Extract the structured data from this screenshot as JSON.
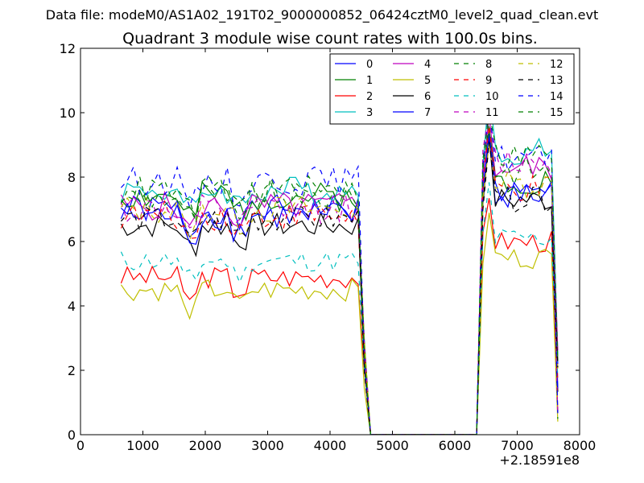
{
  "chart_data": {
    "type": "line",
    "suptitle": "Data file: modeM0/AS1A02_191T02_9000000852_06424cztM0_level2_quad_clean.evt",
    "title": "Quadrant 3 module wise count rates with 100.0s bins.",
    "xlabel": "",
    "ylabel": "",
    "xlim": [
      0,
      8000
    ],
    "ylim": [
      0,
      12
    ],
    "x_ticks": [
      0,
      1000,
      2000,
      3000,
      4000,
      5000,
      6000,
      7000,
      8000
    ],
    "y_ticks": [
      0,
      2,
      4,
      6,
      8,
      10,
      12
    ],
    "x_offset_label": "+2.18591e8",
    "grid": false,
    "legend_position": "top-right",
    "legend_columns": 4,
    "segments": [
      {
        "x_start": 650,
        "x_end": 4450,
        "dx": 100
      },
      {
        "x_start": 4550,
        "x_end": 4650,
        "dx": 100,
        "zero": true
      },
      {
        "x_start": 6350,
        "x_end": 6350,
        "dx": 100,
        "zero": true
      },
      {
        "x_start": 6450,
        "x_end": 7650,
        "dx": 100
      }
    ],
    "series": [
      {
        "name": "0",
        "color": "#0000ff",
        "dash": "solid",
        "base1": 7.0,
        "base2": 7.5,
        "amp": 0.45,
        "seed": 1
      },
      {
        "name": "1",
        "color": "#008000",
        "dash": "solid",
        "base1": 7.4,
        "base2": 7.9,
        "amp": 0.45,
        "seed": 2
      },
      {
        "name": "2",
        "color": "#ff0000",
        "dash": "solid",
        "base1": 4.9,
        "base2": 6.0,
        "amp": 0.35,
        "seed": 3
      },
      {
        "name": "3",
        "color": "#00bfbf",
        "dash": "solid",
        "base1": 7.6,
        "base2": 8.8,
        "amp": 0.45,
        "seed": 4
      },
      {
        "name": "4",
        "color": "#bf00bf",
        "dash": "solid",
        "base1": 7.1,
        "base2": 8.3,
        "amp": 0.45,
        "seed": 5
      },
      {
        "name": "5",
        "color": "#bfbf00",
        "dash": "solid",
        "base1": 4.5,
        "base2": 5.5,
        "amp": 0.35,
        "seed": 6
      },
      {
        "name": "6",
        "color": "#000000",
        "dash": "solid",
        "base1": 6.5,
        "base2": 7.3,
        "amp": 0.4,
        "seed": 7
      },
      {
        "name": "7",
        "color": "#0000ff",
        "dash": "solid",
        "base1": 6.8,
        "base2": 7.6,
        "amp": 0.45,
        "seed": 8
      },
      {
        "name": "8",
        "color": "#008000",
        "dash": "dashed",
        "base1": 7.4,
        "base2": 8.2,
        "amp": 0.45,
        "seed": 9
      },
      {
        "name": "9",
        "color": "#ff0000",
        "dash": "dashed",
        "base1": 6.8,
        "base2": 7.6,
        "amp": 0.45,
        "seed": 10
      },
      {
        "name": "10",
        "color": "#00bfbf",
        "dash": "dashed",
        "base1": 5.4,
        "base2": 6.1,
        "amp": 0.35,
        "seed": 11
      },
      {
        "name": "11",
        "color": "#bf00bf",
        "dash": "dashed",
        "base1": 7.0,
        "base2": 8.5,
        "amp": 0.45,
        "seed": 12
      },
      {
        "name": "12",
        "color": "#bfbf00",
        "dash": "dashed",
        "base1": 7.0,
        "base2": 7.8,
        "amp": 0.45,
        "seed": 13
      },
      {
        "name": "13",
        "color": "#000000",
        "dash": "dashed",
        "base1": 6.7,
        "base2": 7.3,
        "amp": 0.4,
        "seed": 14
      },
      {
        "name": "14",
        "color": "#0000ff",
        "dash": "dashed",
        "base1": 7.9,
        "base2": 8.6,
        "amp": 0.45,
        "seed": 15
      },
      {
        "name": "15",
        "color": "#008000",
        "dash": "dashed",
        "base1": 7.6,
        "base2": 8.7,
        "amp": 0.45,
        "seed": 16
      }
    ]
  }
}
